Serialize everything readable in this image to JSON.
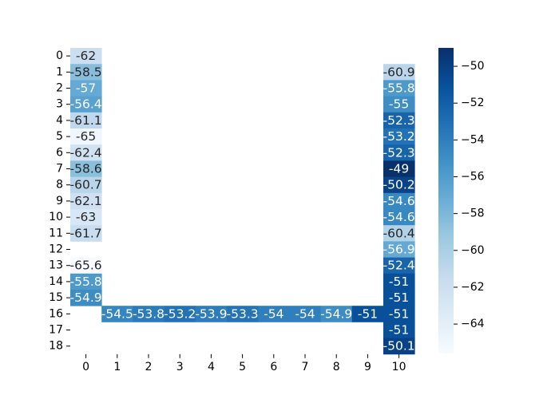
{
  "chart_data": {
    "type": "heatmap",
    "title": "",
    "xlabel": "",
    "ylabel": "",
    "x_ticks": [
      "0",
      "1",
      "2",
      "3",
      "4",
      "5",
      "6",
      "7",
      "8",
      "9",
      "10"
    ],
    "y_ticks": [
      "0",
      "1",
      "2",
      "3",
      "4",
      "5",
      "6",
      "7",
      "8",
      "9",
      "10",
      "11",
      "12",
      "13",
      "14",
      "15",
      "16",
      "17",
      "18"
    ],
    "cells": [
      {
        "row": 0,
        "col": 0,
        "value": -62,
        "label": "-62"
      },
      {
        "row": 1,
        "col": 0,
        "value": -58.5,
        "label": "-58.5"
      },
      {
        "row": 2,
        "col": 0,
        "value": -57,
        "label": "-57"
      },
      {
        "row": 3,
        "col": 0,
        "value": -56.4,
        "label": "-56.4"
      },
      {
        "row": 4,
        "col": 0,
        "value": -61.1,
        "label": "-61.1"
      },
      {
        "row": 5,
        "col": 0,
        "value": -65,
        "label": "-65"
      },
      {
        "row": 6,
        "col": 0,
        "value": -62.4,
        "label": "-62.4"
      },
      {
        "row": 7,
        "col": 0,
        "value": -58.6,
        "label": "-58.6"
      },
      {
        "row": 8,
        "col": 0,
        "value": -60.7,
        "label": "-60.7"
      },
      {
        "row": 9,
        "col": 0,
        "value": -62.1,
        "label": "-62.1"
      },
      {
        "row": 10,
        "col": 0,
        "value": -63,
        "label": "-63"
      },
      {
        "row": 11,
        "col": 0,
        "value": -61.7,
        "label": "-61.7"
      },
      {
        "row": 13,
        "col": 0,
        "value": -65.6,
        "label": "-65.6"
      },
      {
        "row": 14,
        "col": 0,
        "value": -55.8,
        "label": "-55.8"
      },
      {
        "row": 15,
        "col": 0,
        "value": -54.9,
        "label": "-54.9"
      },
      {
        "row": 16,
        "col": 1,
        "value": -54.5,
        "label": "-54.5"
      },
      {
        "row": 16,
        "col": 2,
        "value": -53.8,
        "label": "-53.8"
      },
      {
        "row": 16,
        "col": 3,
        "value": -53.2,
        "label": "-53.2"
      },
      {
        "row": 16,
        "col": 4,
        "value": -53.9,
        "label": "-53.9"
      },
      {
        "row": 16,
        "col": 5,
        "value": -53.3,
        "label": "-53.3"
      },
      {
        "row": 16,
        "col": 6,
        "value": -54,
        "label": "-54"
      },
      {
        "row": 16,
        "col": 7,
        "value": -54,
        "label": "-54"
      },
      {
        "row": 16,
        "col": 8,
        "value": -54.9,
        "label": "-54.9"
      },
      {
        "row": 16,
        "col": 9,
        "value": -51,
        "label": "-51"
      },
      {
        "row": 1,
        "col": 10,
        "value": -60.9,
        "label": "-60.9"
      },
      {
        "row": 2,
        "col": 10,
        "value": -55.8,
        "label": "-55.8"
      },
      {
        "row": 3,
        "col": 10,
        "value": -55,
        "label": "-55"
      },
      {
        "row": 4,
        "col": 10,
        "value": -52.3,
        "label": "-52.3"
      },
      {
        "row": 5,
        "col": 10,
        "value": -53.2,
        "label": "-53.2"
      },
      {
        "row": 6,
        "col": 10,
        "value": -52.3,
        "label": "-52.3"
      },
      {
        "row": 7,
        "col": 10,
        "value": -49,
        "label": "-49"
      },
      {
        "row": 8,
        "col": 10,
        "value": -50.2,
        "label": "-50.2"
      },
      {
        "row": 9,
        "col": 10,
        "value": -54.6,
        "label": "-54.6"
      },
      {
        "row": 10,
        "col": 10,
        "value": -54.6,
        "label": "-54.6"
      },
      {
        "row": 11,
        "col": 10,
        "value": -60.4,
        "label": "-60.4"
      },
      {
        "row": 12,
        "col": 10,
        "value": -56.9,
        "label": "-56.9"
      },
      {
        "row": 13,
        "col": 10,
        "value": -52.4,
        "label": "-52.4"
      },
      {
        "row": 14,
        "col": 10,
        "value": -51,
        "label": "-51"
      },
      {
        "row": 15,
        "col": 10,
        "value": -51,
        "label": "-51"
      },
      {
        "row": 16,
        "col": 10,
        "value": -51,
        "label": "-51"
      },
      {
        "row": 17,
        "col": 10,
        "value": -51,
        "label": "-51"
      },
      {
        "row": 18,
        "col": 10,
        "value": -50.1,
        "label": "-50.1"
      }
    ],
    "colorbar": {
      "vmin": -65.6,
      "vmax": -49,
      "ticks": [
        -50,
        -52,
        -54,
        -56,
        -58,
        -60,
        -62,
        -64
      ],
      "tick_labels": [
        "−50",
        "−52",
        "−54",
        "−56",
        "−58",
        "−60",
        "−62",
        "−64"
      ]
    },
    "colormap": [
      "#f7fbff",
      "#deebf7",
      "#c6dbef",
      "#9ecae1",
      "#6baed6",
      "#4292c6",
      "#2171b5",
      "#08519c",
      "#08306b"
    ],
    "label_color_dark": "#262626",
    "label_color_light": "#ffffff",
    "grid": false,
    "legend": "colorbar-right"
  }
}
